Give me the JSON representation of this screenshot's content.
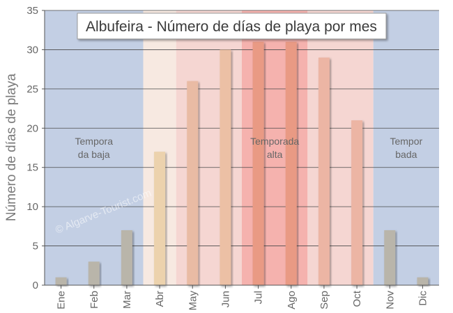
{
  "chart_data": {
    "type": "bar",
    "title": "Albufeira - Número de días de playa por mes",
    "xlabel": "",
    "ylabel": "Número de días de playa",
    "ylim": [
      0,
      35
    ],
    "yticks": [
      0,
      5,
      10,
      15,
      20,
      25,
      30,
      35
    ],
    "grid": true,
    "categories": [
      "Ene",
      "Feb",
      "Mar",
      "Abr",
      "May",
      "Jun",
      "Jul",
      "Ago",
      "Sep",
      "Oct",
      "Nov",
      "Dic"
    ],
    "values": [
      1,
      3,
      7,
      17,
      26,
      30,
      31,
      31,
      29,
      21,
      7,
      1
    ],
    "seasons": [
      {
        "label": [
          "Tempora",
          "da baja"
        ],
        "from": 0,
        "to": 2,
        "color": "#c3cfe4"
      },
      {
        "label": [],
        "from": 3,
        "to": 3,
        "color": "#f7e9e1"
      },
      {
        "label": [],
        "from": 4,
        "to": 5,
        "color": "#f5d6d2"
      },
      {
        "label": [
          "Temporada",
          "alta"
        ],
        "from": 6,
        "to": 7,
        "color": "#f5b2ae"
      },
      {
        "label": [],
        "from": 8,
        "to": 9,
        "color": "#f5d6d2"
      },
      {
        "label": [
          "Tempor",
          "bada"
        ],
        "from": 10,
        "to": 11,
        "color": "#c3cfe4"
      }
    ],
    "bar_colors": [
      "#b9b5aa",
      "#b9b5aa",
      "#b9b5aa",
      "#ecd2ad",
      "#e9bba4",
      "#ecc0a5",
      "#e99a84",
      "#e99a84",
      "#ecb5a4",
      "#ecb5a4",
      "#b9b5aa",
      "#b9b5aa"
    ],
    "watermark": "© Algarve-Tourist.com"
  }
}
